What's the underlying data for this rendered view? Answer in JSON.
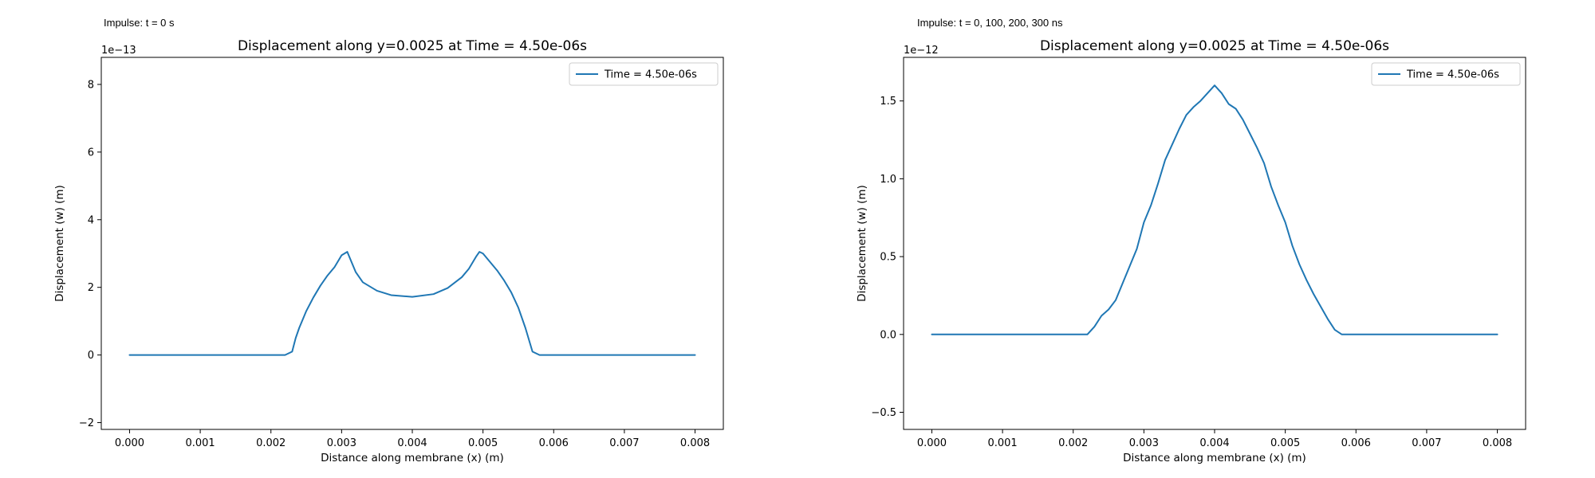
{
  "panels": [
    {
      "caption": "Impulse: t = 0 s",
      "chart_data": {
        "type": "line",
        "title": "Displacement along y=0.0025 at Time = 4.50e-06s",
        "xlabel": "Distance along membrane (x) (m)",
        "ylabel": "Displacement (w) (m)",
        "offset_text": "1e−13",
        "scale_exponent": -13,
        "xlim": [
          -0.0004,
          0.0084
        ],
        "ylim": [
          -2.2,
          8.8
        ],
        "xticks": [
          0.0,
          0.001,
          0.002,
          0.003,
          0.004,
          0.005,
          0.006,
          0.007,
          0.008
        ],
        "xtick_labels": [
          "0.000",
          "0.001",
          "0.002",
          "0.003",
          "0.004",
          "0.005",
          "0.006",
          "0.007",
          "0.008"
        ],
        "yticks": [
          -2,
          0,
          2,
          4,
          6,
          8
        ],
        "ytick_labels": [
          "−2",
          "0",
          "2",
          "4",
          "6",
          "8"
        ],
        "legend_position": "upper right",
        "grid": false,
        "series": [
          {
            "name": "Time = 4.50e-06s",
            "color": "#1f77b4",
            "x": [
              0.0,
              0.0005,
              0.001,
              0.0015,
              0.002,
              0.0022,
              0.0023,
              0.00235,
              0.0024,
              0.0025,
              0.0026,
              0.0027,
              0.0028,
              0.0029,
              0.003,
              0.00308,
              0.0032,
              0.0033,
              0.0035,
              0.0037,
              0.004,
              0.0043,
              0.0045,
              0.0047,
              0.0048,
              0.0049,
              0.00495,
              0.005,
              0.0051,
              0.0052,
              0.0053,
              0.0054,
              0.0055,
              0.0056,
              0.0057,
              0.00575,
              0.0058,
              0.006,
              0.0065,
              0.007,
              0.0075,
              0.008
            ],
            "y": [
              0.0,
              0.0,
              0.0,
              0.0,
              0.0,
              0.0,
              0.1,
              0.5,
              0.8,
              1.3,
              1.7,
              2.05,
              2.35,
              2.6,
              2.95,
              3.05,
              2.45,
              2.15,
              1.9,
              1.77,
              1.72,
              1.8,
              1.98,
              2.3,
              2.55,
              2.9,
              3.05,
              3.0,
              2.75,
              2.5,
              2.2,
              1.85,
              1.4,
              0.8,
              0.1,
              0.05,
              0.0,
              0.0,
              0.0,
              0.0,
              0.0,
              0.0
            ]
          }
        ]
      }
    },
    {
      "caption": "Impulse: t = 0, 100, 200, 300 ns",
      "chart_data": {
        "type": "line",
        "title": "Displacement along y=0.0025 at Time = 4.50e-06s",
        "xlabel": "Distance along membrane (x) (m)",
        "ylabel": "Displacement (w) (m)",
        "offset_text": "1e−12",
        "scale_exponent": -12,
        "xlim": [
          -0.0004,
          0.0084
        ],
        "ylim": [
          -0.61,
          1.78
        ],
        "xticks": [
          0.0,
          0.001,
          0.002,
          0.003,
          0.004,
          0.005,
          0.006,
          0.007,
          0.008
        ],
        "xtick_labels": [
          "0.000",
          "0.001",
          "0.002",
          "0.003",
          "0.004",
          "0.005",
          "0.006",
          "0.007",
          "0.008"
        ],
        "yticks": [
          -0.5,
          0.0,
          0.5,
          1.0,
          1.5
        ],
        "ytick_labels": [
          "−0.5",
          "0.0",
          "0.5",
          "1.0",
          "1.5"
        ],
        "legend_position": "upper right",
        "grid": false,
        "series": [
          {
            "name": "Time = 4.50e-06s",
            "color": "#1f77b4",
            "x": [
              0.0,
              0.0005,
              0.001,
              0.0015,
              0.002,
              0.0022,
              0.0023,
              0.0024,
              0.0025,
              0.0026,
              0.0027,
              0.0028,
              0.0029,
              0.003,
              0.0031,
              0.0032,
              0.0033,
              0.0034,
              0.0035,
              0.0036,
              0.0037,
              0.0038,
              0.0039,
              0.004,
              0.0041,
              0.0042,
              0.0043,
              0.0044,
              0.0045,
              0.0046,
              0.0047,
              0.0048,
              0.0049,
              0.005,
              0.0051,
              0.0052,
              0.0053,
              0.0054,
              0.0055,
              0.0056,
              0.0057,
              0.0058,
              0.006,
              0.0065,
              0.007,
              0.0075,
              0.008
            ],
            "y": [
              0.0,
              0.0,
              0.0,
              0.0,
              0.0,
              0.0,
              0.05,
              0.12,
              0.16,
              0.22,
              0.33,
              0.44,
              0.55,
              0.72,
              0.83,
              0.97,
              1.12,
              1.22,
              1.32,
              1.41,
              1.46,
              1.5,
              1.55,
              1.6,
              1.55,
              1.48,
              1.45,
              1.38,
              1.29,
              1.2,
              1.1,
              0.95,
              0.83,
              0.72,
              0.57,
              0.45,
              0.35,
              0.26,
              0.18,
              0.1,
              0.03,
              0.0,
              0.0,
              0.0,
              0.0,
              0.0,
              0.0
            ]
          }
        ]
      }
    }
  ]
}
